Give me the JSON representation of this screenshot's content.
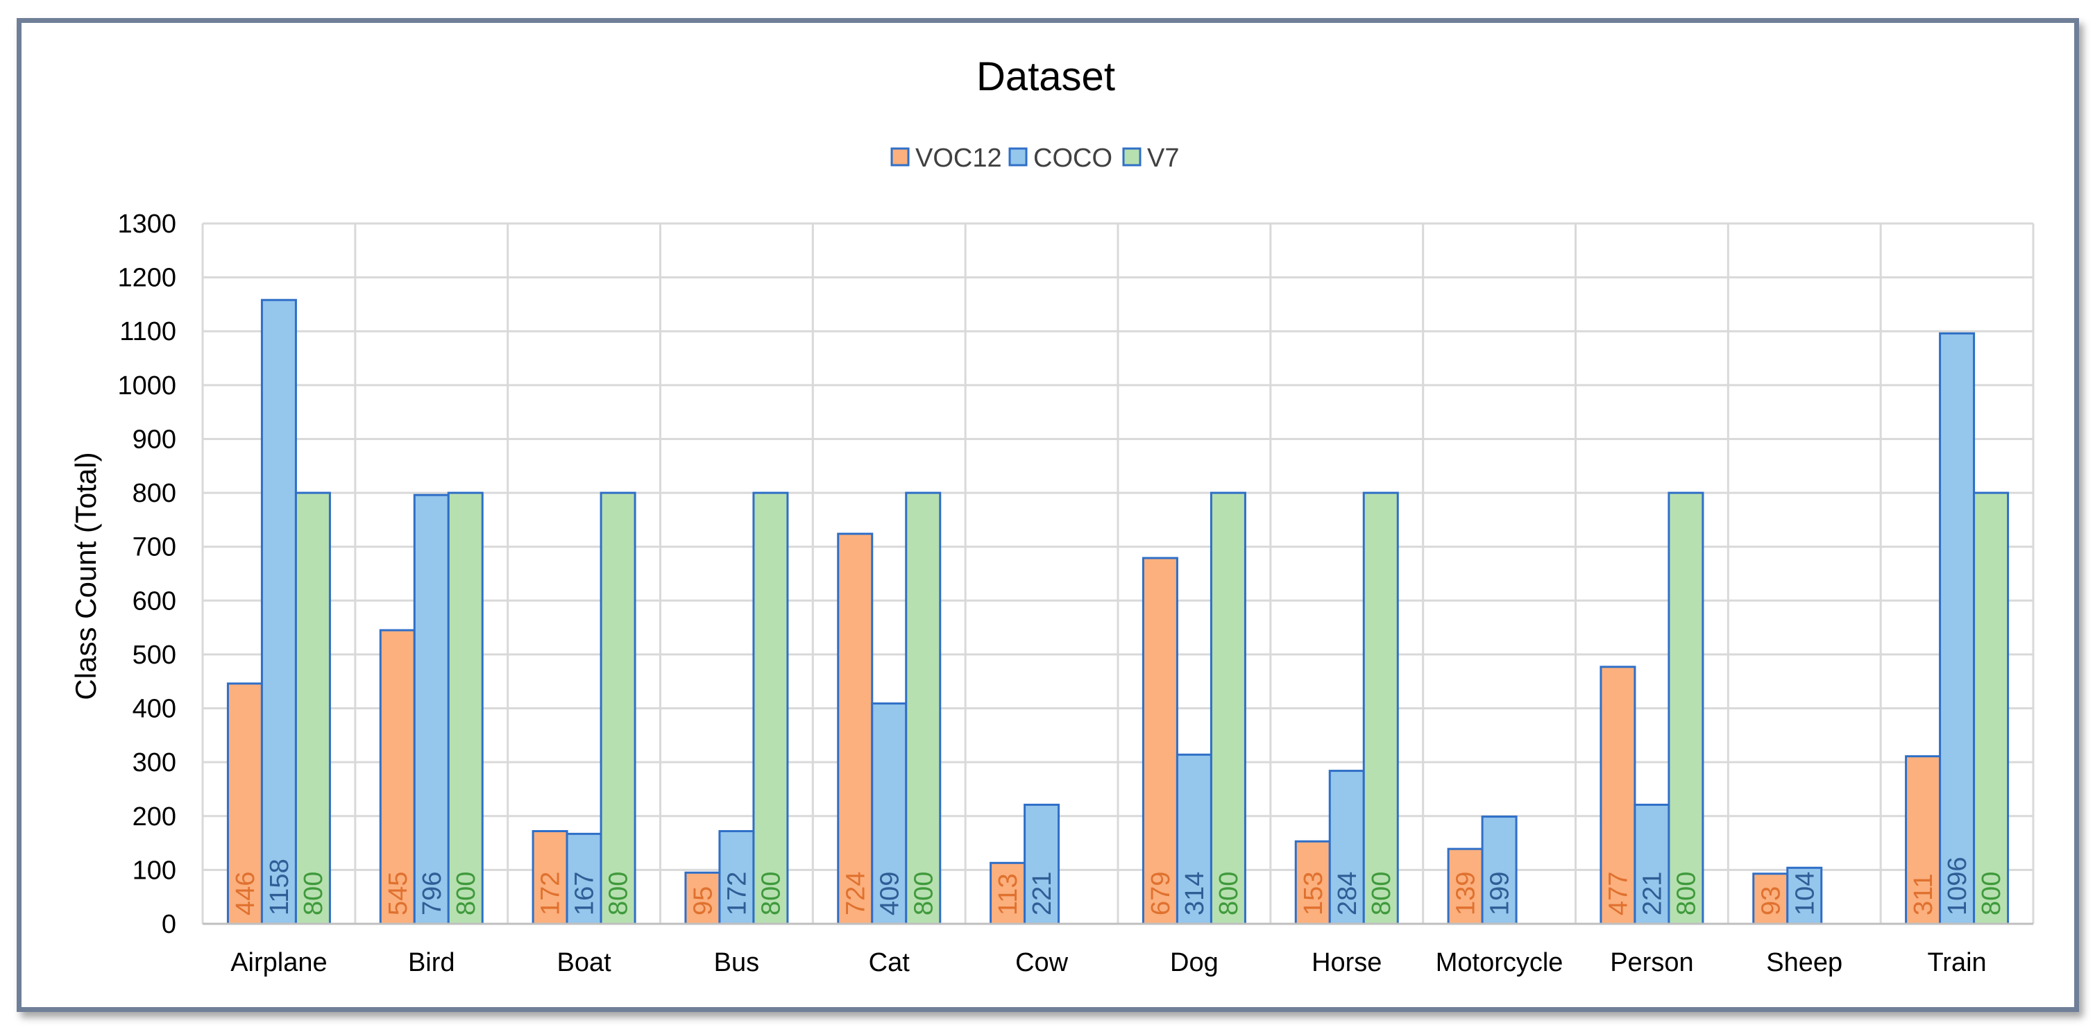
{
  "chart_data": {
    "type": "bar",
    "title": "Dataset",
    "xlabel": "",
    "ylabel": "Class Count (Total)",
    "ylim": [
      0,
      1300
    ],
    "yticks": [
      0,
      100,
      200,
      300,
      400,
      500,
      600,
      700,
      800,
      900,
      1000,
      1100,
      1200,
      1300
    ],
    "grid": true,
    "legend_position": "top-center",
    "categories": [
      "Airplane",
      "Bird",
      "Boat",
      "Bus",
      "Cat",
      "Cow",
      "Dog",
      "Horse",
      "Motorcycle",
      "Person",
      "Sheep",
      "Train"
    ],
    "series": [
      {
        "name": "VOC12",
        "color": "#fbb07e",
        "edge_color": "#2f6fc7",
        "label_color": "#e0712f",
        "values": [
          446,
          545,
          172,
          95,
          724,
          113,
          679,
          153,
          139,
          477,
          93,
          311
        ]
      },
      {
        "name": "COCO",
        "color": "#95c6ec",
        "edge_color": "#2f6fc7",
        "label_color": "#2f5d96",
        "values": [
          1158,
          796,
          167,
          172,
          409,
          221,
          314,
          284,
          199,
          221,
          104,
          1096
        ]
      },
      {
        "name": "V7",
        "color": "#b7e0b0",
        "edge_color": "#2f6fc7",
        "label_color": "#3f9a3c",
        "values": [
          800,
          800,
          800,
          800,
          800,
          null,
          800,
          800,
          null,
          800,
          null,
          800
        ]
      }
    ]
  }
}
